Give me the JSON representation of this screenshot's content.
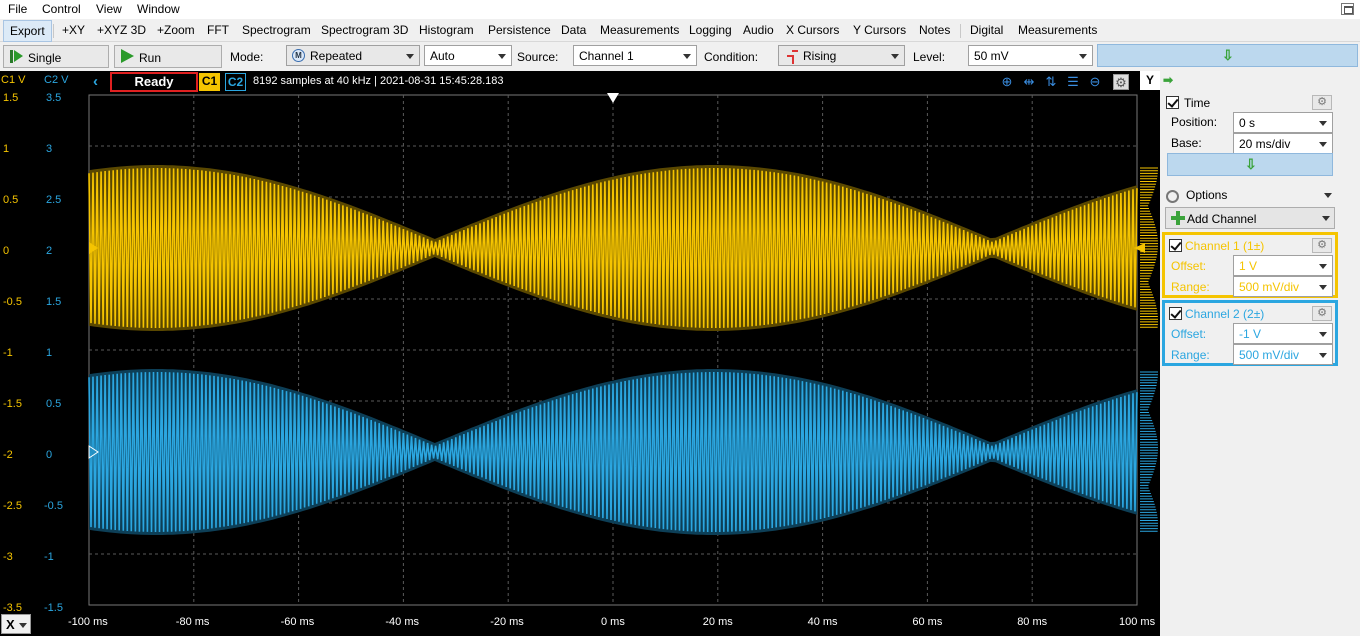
{
  "menu": [
    "File",
    "Control",
    "View",
    "Window"
  ],
  "tabs": [
    "Export",
    "+XY",
    "+XYZ 3D",
    "+Zoom",
    "FFT",
    "Spectrogram",
    "Spectrogram 3D",
    "Histogram",
    "Persistence",
    "Data",
    "Measurements",
    "Logging",
    "Audio",
    "X Cursors",
    "Y Cursors",
    "Notes",
    "Digital",
    "Measurements"
  ],
  "toolbar": {
    "single_label": "Single",
    "run_label": "Run",
    "mode_label": "Mode:",
    "mode_value": "Repeated",
    "auto_value": "Auto",
    "source_label": "Source:",
    "source_value": "Channel 1",
    "condition_label": "Condition:",
    "condition_value": "Rising",
    "level_label": "Level:",
    "level_value": "50 mV"
  },
  "scope": {
    "c1_header": "C1 V",
    "c2_header": "C2 V",
    "status": "Ready",
    "chip_c1": "C1",
    "chip_c2": "C2",
    "info": "8192 samples at 40 kHz | 2021-08-31 15:45:28.183",
    "c1_ticks": [
      "1.5",
      "1",
      "0.5",
      "0",
      "-0.5",
      "-1",
      "-1.5",
      "-2",
      "-2.5",
      "-3",
      "-3.5"
    ],
    "c2_ticks": [
      "3.5",
      "3",
      "2.5",
      "2",
      "1.5",
      "1",
      "0.5",
      "0",
      "-0.5",
      "-1",
      "-1.5"
    ],
    "x_ticks": [
      "-100 ms",
      "-80 ms",
      "-60 ms",
      "-40 ms",
      "-20 ms",
      "0 ms",
      "20 ms",
      "40 ms",
      "60 ms",
      "80 ms",
      "100 ms"
    ],
    "x_axis_button": "X",
    "colors": {
      "c1": "#f5c400",
      "c2": "#2ba6e0",
      "grid": "#5a5a5a"
    }
  },
  "panel": {
    "y_tab": "Y",
    "time_title": "Time",
    "position_label": "Position:",
    "position_value": "0 s",
    "base_label": "Base:",
    "base_value": "20 ms/div",
    "options_label": "Options",
    "add_channel_label": "Add Channel",
    "ch1_title": "Channel 1 (1±)",
    "ch1_offset_label": "Offset:",
    "ch1_offset_value": "1 V",
    "ch1_range_label": "Range:",
    "ch1_range_value": "500 mV/div",
    "ch2_title": "Channel 2 (2±)",
    "ch2_offset_label": "Offset:",
    "ch2_offset_value": "-1 V",
    "ch2_range_label": "Range:",
    "ch2_range_value": "500 mV/div"
  }
}
